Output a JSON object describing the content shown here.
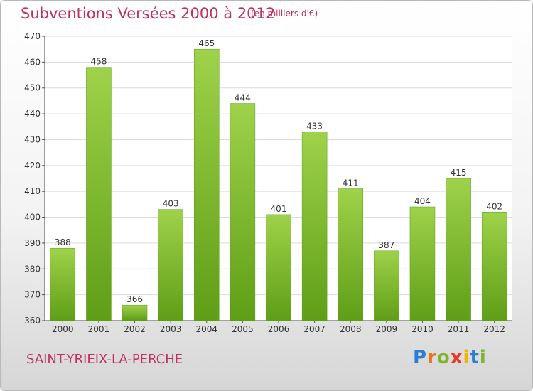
{
  "header": {
    "title": "Subventions Versées 2000 à 2012",
    "subtitle": "(en milliers d'€)"
  },
  "footer": {
    "town": "SAINT-YRIEIX-LA-PERCHE",
    "logo_letters": [
      "P",
      "r",
      "o",
      "x",
      "i",
      "t",
      "i"
    ],
    "logo_colors": [
      "#2f7fd1",
      "#e8731a",
      "#7fb52a",
      "#e33a2b",
      "#f0b400",
      "#2f7fd1",
      "#7fb52a"
    ]
  },
  "chart_data": {
    "type": "bar",
    "title": "Subventions Versées 2000 à 2012",
    "categories": [
      "2000",
      "2001",
      "2002",
      "2003",
      "2004",
      "2005",
      "2006",
      "2007",
      "2008",
      "2009",
      "2010",
      "2011",
      "2012"
    ],
    "values": [
      388,
      458,
      366,
      403,
      465,
      444,
      401,
      433,
      411,
      387,
      404,
      415,
      402
    ],
    "ylim": [
      360,
      470
    ],
    "yticks": [
      360,
      370,
      380,
      390,
      400,
      410,
      420,
      430,
      440,
      450,
      460,
      470
    ],
    "grid": true,
    "bar_color": "#7cbf2a"
  }
}
